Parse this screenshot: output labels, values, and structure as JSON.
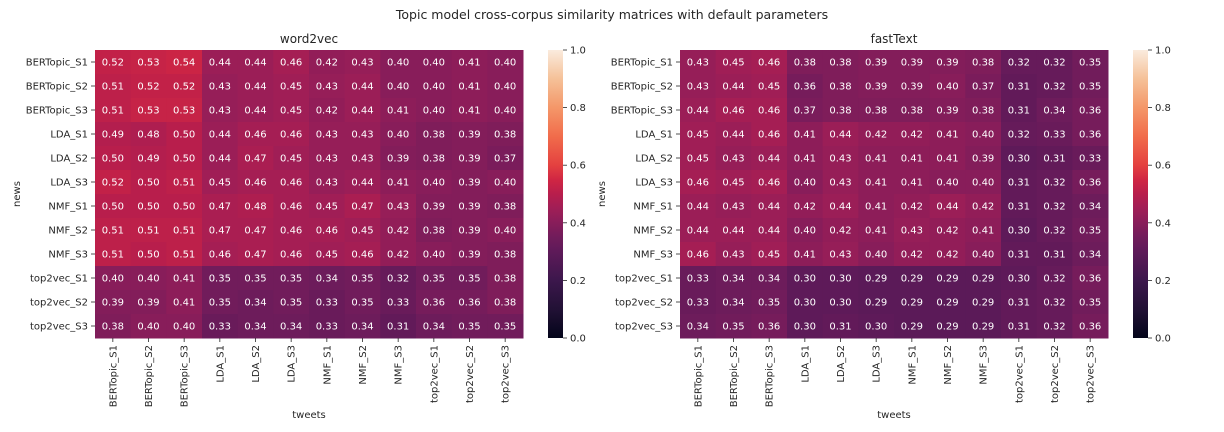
{
  "figure": {
    "suptitle": "Topic model cross-corpus similarity matrices with default parameters"
  },
  "chart_data": [
    {
      "type": "heatmap",
      "title": "word2vec",
      "xlabel": "tweets",
      "ylabel": "news",
      "x_categories": [
        "BERTopic_S1",
        "BERTopic_S2",
        "BERTopic_S3",
        "LDA_S1",
        "LDA_S2",
        "LDA_S3",
        "NMF_S1",
        "NMF_S2",
        "NMF_S3",
        "top2vec_S1",
        "top2vec_S2",
        "top2vec_S3"
      ],
      "y_categories": [
        "BERTopic_S1",
        "BERTopic_S2",
        "BERTopic_S3",
        "LDA_S1",
        "LDA_S2",
        "LDA_S3",
        "NMF_S1",
        "NMF_S2",
        "NMF_S3",
        "top2vec_S1",
        "top2vec_S2",
        "top2vec_S3"
      ],
      "values": [
        [
          0.52,
          0.53,
          0.54,
          0.44,
          0.44,
          0.46,
          0.42,
          0.43,
          0.4,
          0.4,
          0.41,
          0.4
        ],
        [
          0.51,
          0.52,
          0.52,
          0.43,
          0.44,
          0.45,
          0.43,
          0.44,
          0.4,
          0.4,
          0.41,
          0.4
        ],
        [
          0.51,
          0.53,
          0.53,
          0.43,
          0.44,
          0.45,
          0.42,
          0.44,
          0.41,
          0.4,
          0.41,
          0.4
        ],
        [
          0.49,
          0.48,
          0.5,
          0.44,
          0.46,
          0.46,
          0.43,
          0.43,
          0.4,
          0.38,
          0.39,
          0.38
        ],
        [
          0.5,
          0.49,
          0.5,
          0.44,
          0.47,
          0.45,
          0.43,
          0.43,
          0.39,
          0.38,
          0.39,
          0.37
        ],
        [
          0.52,
          0.5,
          0.51,
          0.45,
          0.46,
          0.46,
          0.43,
          0.44,
          0.41,
          0.4,
          0.39,
          0.4
        ],
        [
          0.5,
          0.5,
          0.5,
          0.47,
          0.48,
          0.46,
          0.45,
          0.47,
          0.43,
          0.39,
          0.39,
          0.38
        ],
        [
          0.51,
          0.51,
          0.51,
          0.47,
          0.47,
          0.46,
          0.46,
          0.45,
          0.42,
          0.38,
          0.39,
          0.4
        ],
        [
          0.51,
          0.5,
          0.51,
          0.46,
          0.47,
          0.46,
          0.45,
          0.46,
          0.42,
          0.4,
          0.39,
          0.38
        ],
        [
          0.4,
          0.4,
          0.41,
          0.35,
          0.35,
          0.35,
          0.34,
          0.35,
          0.32,
          0.35,
          0.35,
          0.38
        ],
        [
          0.39,
          0.39,
          0.41,
          0.35,
          0.34,
          0.35,
          0.33,
          0.35,
          0.33,
          0.36,
          0.36,
          0.38
        ],
        [
          0.38,
          0.4,
          0.4,
          0.33,
          0.34,
          0.34,
          0.33,
          0.34,
          0.31,
          0.34,
          0.35,
          0.35
        ]
      ],
      "colorbar": {
        "min": 0.0,
        "max": 1.0,
        "ticks": [
          "0.0",
          "0.2",
          "0.4",
          "0.6",
          "0.8",
          "1.0"
        ],
        "colormap": "rocket"
      }
    },
    {
      "type": "heatmap",
      "title": "fastText",
      "xlabel": "tweets",
      "ylabel": "news",
      "x_categories": [
        "BERTopic_S1",
        "BERTopic_S2",
        "BERTopic_S3",
        "LDA_S1",
        "LDA_S2",
        "LDA_S3",
        "NMF_S1",
        "NMF_S2",
        "NMF_S3",
        "top2vec_S1",
        "top2vec_S2",
        "top2vec_S3"
      ],
      "y_categories": [
        "BERTopic_S1",
        "BERTopic_S2",
        "BERTopic_S3",
        "LDA_S1",
        "LDA_S2",
        "LDA_S3",
        "NMF_S1",
        "NMF_S2",
        "NMF_S3",
        "top2vec_S1",
        "top2vec_S2",
        "top2vec_S3"
      ],
      "values": [
        [
          0.43,
          0.45,
          0.46,
          0.38,
          0.38,
          0.39,
          0.39,
          0.39,
          0.38,
          0.32,
          0.32,
          0.35
        ],
        [
          0.43,
          0.44,
          0.45,
          0.36,
          0.38,
          0.39,
          0.39,
          0.4,
          0.37,
          0.31,
          0.32,
          0.35
        ],
        [
          0.44,
          0.46,
          0.46,
          0.37,
          0.38,
          0.38,
          0.38,
          0.39,
          0.38,
          0.31,
          0.34,
          0.36
        ],
        [
          0.45,
          0.44,
          0.46,
          0.41,
          0.44,
          0.42,
          0.42,
          0.41,
          0.4,
          0.32,
          0.33,
          0.36
        ],
        [
          0.45,
          0.43,
          0.44,
          0.41,
          0.43,
          0.41,
          0.41,
          0.41,
          0.39,
          0.3,
          0.31,
          0.33
        ],
        [
          0.46,
          0.45,
          0.46,
          0.4,
          0.43,
          0.41,
          0.41,
          0.4,
          0.4,
          0.31,
          0.32,
          0.36
        ],
        [
          0.44,
          0.43,
          0.44,
          0.42,
          0.44,
          0.41,
          0.42,
          0.44,
          0.42,
          0.31,
          0.32,
          0.34
        ],
        [
          0.44,
          0.44,
          0.44,
          0.4,
          0.42,
          0.41,
          0.43,
          0.42,
          0.41,
          0.3,
          0.32,
          0.35
        ],
        [
          0.46,
          0.43,
          0.45,
          0.41,
          0.43,
          0.4,
          0.42,
          0.42,
          0.4,
          0.31,
          0.31,
          0.34
        ],
        [
          0.33,
          0.34,
          0.34,
          0.3,
          0.3,
          0.29,
          0.29,
          0.29,
          0.29,
          0.3,
          0.32,
          0.36
        ],
        [
          0.33,
          0.34,
          0.35,
          0.3,
          0.3,
          0.29,
          0.29,
          0.29,
          0.29,
          0.31,
          0.32,
          0.35
        ],
        [
          0.34,
          0.35,
          0.36,
          0.3,
          0.31,
          0.3,
          0.29,
          0.29,
          0.29,
          0.31,
          0.32,
          0.36
        ]
      ],
      "colorbar": {
        "min": 0.0,
        "max": 1.0,
        "ticks": [
          "0.0",
          "0.2",
          "0.4",
          "0.6",
          "0.8",
          "1.0"
        ],
        "colormap": "rocket"
      }
    }
  ]
}
